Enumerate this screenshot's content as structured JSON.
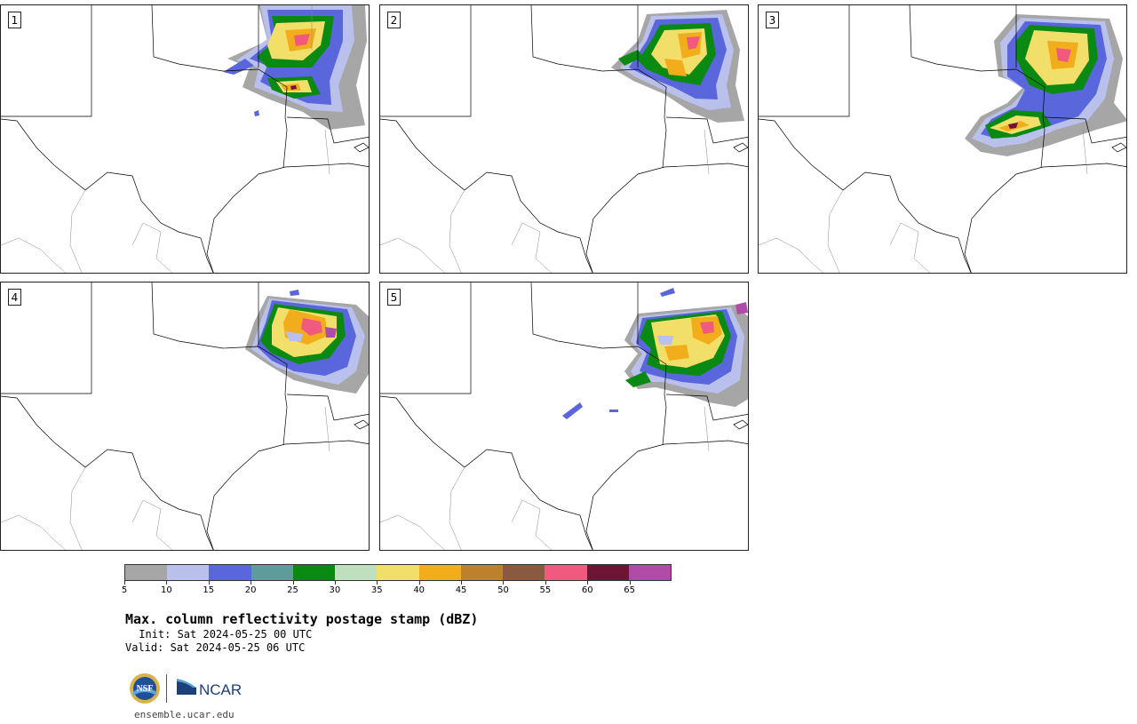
{
  "panels": [
    {
      "label": "1"
    },
    {
      "label": "2"
    },
    {
      "label": "3"
    },
    {
      "label": "4"
    },
    {
      "label": "5"
    }
  ],
  "colorbar": {
    "colors": [
      "#a6a6a6",
      "#b9c0ec",
      "#5a66dc",
      "#5c9c9a",
      "#0a8a12",
      "#bfe0bf",
      "#f2df6a",
      "#f2ad1c",
      "#bd812e",
      "#8a5a40",
      "#f05a7e",
      "#6e1535",
      "#b04ba8"
    ],
    "tick_labels": [
      "5",
      "10",
      "15",
      "20",
      "25",
      "30",
      "35",
      "40",
      "45",
      "50",
      "55",
      "60",
      "65"
    ]
  },
  "title": "Max. column reflectivity postage stamp (dBZ)",
  "init_text": " Init: Sat 2024-05-25 00 UTC",
  "valid_text": "Valid: Sat 2024-05-25 06 UTC",
  "logos": {
    "nsf_text": "NSF",
    "ncar_text": "NCAR"
  },
  "site": "ensemble.ucar.edu"
}
